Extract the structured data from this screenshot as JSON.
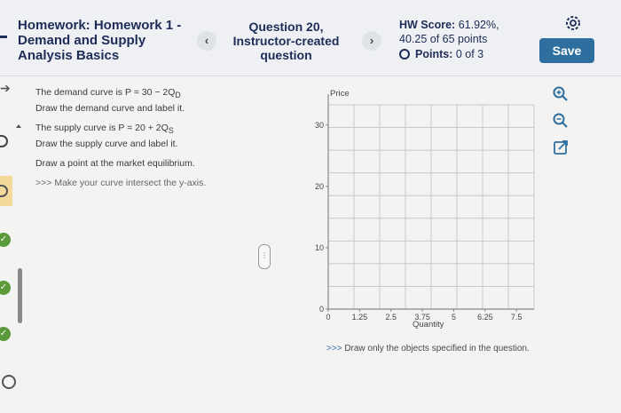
{
  "header": {
    "assignment_title": "Homework: Homework 1 - Demand and Supply Analysis Basics",
    "prev_label": "‹",
    "next_label": "›",
    "question_title": "Question 20, Instructor-created question",
    "hw_score_label": "HW Score:",
    "hw_score_value": "61.92%,",
    "points_total": "40.25 of 65 points",
    "points_label": "Points:",
    "points_value": "0 of 3",
    "save_label": "Save"
  },
  "question": {
    "demand_line": "The demand curve is P = 30 − 2Q",
    "demand_sub": "D",
    "demand_instr": "Draw the demand curve and label it.",
    "supply_line": "The supply curve is P = 20 + 2Q",
    "supply_sub": "S",
    "supply_instr": "Draw the supply curve and label it.",
    "equilibrium_instr": "Draw a point at the market equilibrium.",
    "hint_prefix": ">>>",
    "hint_text": "Make your curve intersect the y-axis."
  },
  "graph": {
    "y_label": "Price",
    "x_label": "Quantity",
    "y_ticks": [
      "0",
      "10",
      "20",
      "30"
    ],
    "x_ticks": [
      "0",
      "1.25",
      "2.5",
      "3.75",
      "5",
      "6.25",
      "7.5"
    ],
    "bottom_prefix": ">>>",
    "bottom_note": "Draw only the objects specified in the question."
  },
  "tools": [
    "zoom-in-icon",
    "zoom-out-icon",
    "open-external-icon"
  ],
  "colors": {
    "header_text": "#1d2d57",
    "save_button": "#2f6f9f",
    "check": "#5a9a3a",
    "grid": "#c8c8c8"
  }
}
